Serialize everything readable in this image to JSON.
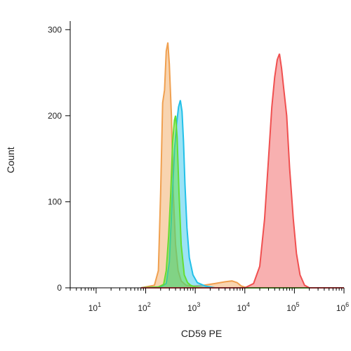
{
  "chart_data": {
    "type": "area",
    "xlabel": "CD59 PE",
    "ylabel": "Count",
    "x_scale": "log",
    "xlim": [
      3,
      1000000
    ],
    "ylim": [
      0,
      310
    ],
    "x_ticks": [
      {
        "base": "10",
        "exp": "1"
      },
      {
        "base": "10",
        "exp": "2"
      },
      {
        "base": "10",
        "exp": "3"
      },
      {
        "base": "10",
        "exp": "4"
      },
      {
        "base": "10",
        "exp": "5"
      },
      {
        "base": "10",
        "exp": "6"
      }
    ],
    "y_ticks": [
      "0",
      "100",
      "200",
      "300"
    ],
    "y_tick_values": [
      0,
      100,
      200,
      300
    ],
    "grid": false,
    "series": [
      {
        "color": "#f0a050",
        "x": [
          80,
          150,
          180,
          200,
          220,
          240,
          260,
          280,
          300,
          330,
          360,
          400,
          450,
          520,
          650,
          900,
          1500,
          2500,
          4000,
          5500,
          7000,
          8500,
          11000,
          15000,
          1000000
        ],
        "y": [
          0,
          3,
          20,
          110,
          215,
          230,
          275,
          285,
          260,
          200,
          110,
          50,
          20,
          8,
          3,
          2,
          3,
          5,
          7,
          8,
          6,
          2,
          0,
          0,
          0
        ]
      },
      {
        "color": "#22c0e8",
        "x": [
          80,
          200,
          260,
          300,
          340,
          380,
          420,
          460,
          500,
          540,
          580,
          620,
          680,
          760,
          900,
          1100,
          1600,
          2500,
          1000000
        ],
        "y": [
          0,
          1,
          5,
          30,
          100,
          160,
          190,
          210,
          218,
          205,
          170,
          120,
          70,
          35,
          15,
          6,
          2,
          0,
          0
        ]
      },
      {
        "color": "#66dd33",
        "x": [
          80,
          180,
          230,
          260,
          290,
          320,
          350,
          380,
          400,
          430,
          470,
          520,
          600,
          700,
          800,
          1000,
          1500,
          1000000
        ],
        "y": [
          0,
          1,
          4,
          20,
          60,
          110,
          170,
          195,
          200,
          175,
          110,
          50,
          15,
          6,
          3,
          1,
          0,
          0
        ]
      },
      {
        "color": "#f05050",
        "x": [
          80,
          10000,
          15000,
          20000,
          25000,
          30000,
          35000,
          40000,
          45000,
          50000,
          55000,
          60000,
          70000,
          80000,
          95000,
          110000,
          130000,
          160000,
          200000,
          1000000
        ],
        "y": [
          0,
          0,
          5,
          25,
          80,
          150,
          210,
          245,
          265,
          272,
          255,
          235,
          200,
          140,
          80,
          40,
          15,
          3,
          0,
          0
        ]
      }
    ]
  }
}
